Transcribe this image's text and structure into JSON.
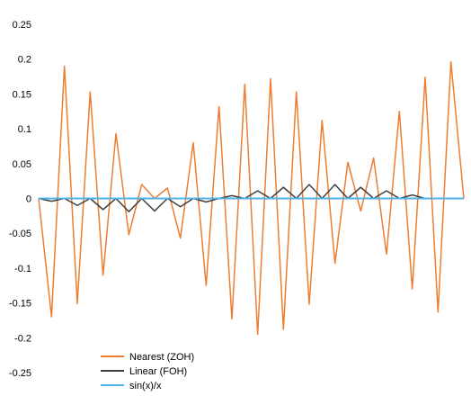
{
  "chart_data": {
    "type": "line",
    "title": "",
    "xlabel": "",
    "ylabel": "",
    "ylim": [
      -0.25,
      0.25
    ],
    "y_ticks": [
      0.25,
      0.2,
      0.15,
      0.1,
      0.05,
      0,
      -0.05,
      -0.1,
      -0.15,
      -0.2,
      -0.25
    ],
    "y_tick_labels": [
      "0.25",
      "0.2",
      "0.15",
      "0.1",
      "0.05",
      "0",
      "-0.05",
      "-0.1",
      "-0.15",
      "-0.2",
      "-0.25"
    ],
    "x_axis_labels_shown": false,
    "grid": false,
    "legend_position": "bottom-left",
    "series": [
      {
        "name": "Nearest (ZOH)",
        "color": "#ED7D31",
        "values": [
          0,
          -0.17,
          0.19,
          -0.151,
          0.153,
          -0.11,
          0.093,
          -0.052,
          0.02,
          0.0,
          0.015,
          -0.057,
          0.08,
          -0.125,
          0.132,
          -0.173,
          0.164,
          -0.195,
          0.172,
          -0.188,
          0.153,
          -0.152,
          0.112,
          -0.093,
          0.052,
          -0.018,
          0.058,
          -0.08,
          0.125,
          -0.13,
          0.174,
          -0.163,
          0.196,
          0.0
        ]
      },
      {
        "name": "Linear (FOH)",
        "color": "#404040",
        "values": [
          0,
          -0.004,
          0,
          -0.01,
          0,
          -0.016,
          0,
          -0.019,
          0,
          -0.018,
          0,
          -0.012,
          0,
          -0.005,
          0,
          0.004,
          0,
          0.011,
          0,
          0.016,
          0,
          0.02,
          0,
          0.02,
          0,
          0.016,
          0,
          0.011,
          0,
          0.005,
          0,
          0,
          0,
          0
        ]
      },
      {
        "name": "sin(x)/x",
        "color": "#4FB3E8",
        "values": [
          0,
          0,
          0,
          0,
          0,
          0,
          0,
          0,
          0,
          0,
          0,
          0,
          0,
          0,
          0,
          0,
          0,
          0,
          0,
          0,
          0,
          0,
          0,
          0,
          0,
          0,
          0,
          0,
          0,
          0,
          0,
          0,
          0,
          0
        ]
      }
    ]
  }
}
